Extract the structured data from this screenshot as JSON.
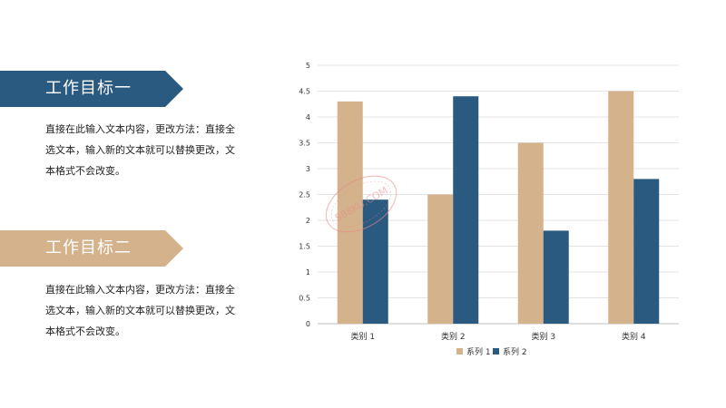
{
  "goals": [
    {
      "title": "工作目标一",
      "text": "直接在此输入文本内容，更改方法：直接全选文本，输入新的文本就可以替换更改，文本格式不会改变。",
      "color": "#2a5a80"
    },
    {
      "title": "工作目标二",
      "text": "直接在此输入文本内容，更改方法：直接全选文本，输入新的文本就可以替换更改，文本格式不会改变。",
      "color": "#d4b28c"
    }
  ],
  "watermark": "588KU.COM",
  "chart_data": {
    "type": "bar",
    "categories": [
      "类别 1",
      "类别 2",
      "类别 3",
      "类别 4"
    ],
    "series": [
      {
        "name": "系列 1",
        "values": [
          4.3,
          2.5,
          3.5,
          4.5
        ],
        "color": "#d4b28c"
      },
      {
        "name": "系列 2",
        "values": [
          2.4,
          4.4,
          1.8,
          2.8
        ],
        "color": "#2a5a80"
      }
    ],
    "ylim": [
      0,
      5
    ],
    "yticks": [
      "0",
      "0.5",
      "1",
      "1.5",
      "2",
      "2.5",
      "3",
      "3.5",
      "4",
      "4.5",
      "5"
    ],
    "grid": true,
    "legend": "bottom"
  }
}
